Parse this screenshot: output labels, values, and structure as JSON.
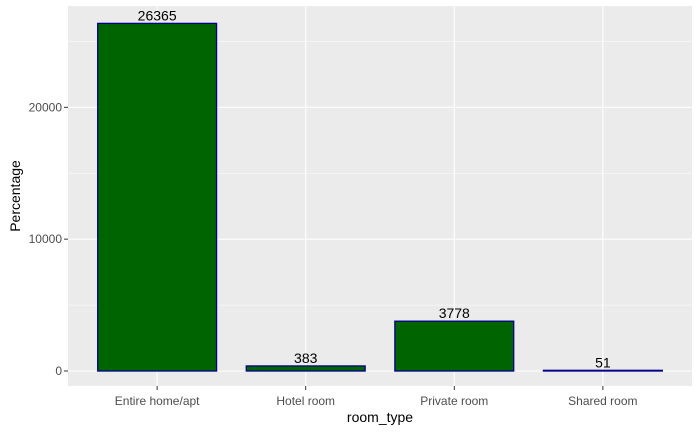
{
  "chart_data": {
    "type": "bar",
    "title": "",
    "xlabel": "room_type",
    "ylabel": "Percentage",
    "categories": [
      "Entire home/apt",
      "Hotel room",
      "Private room",
      "Shared room"
    ],
    "values": [
      26365,
      383,
      3778,
      51
    ],
    "data_labels": [
      "26365",
      "383",
      "3778",
      "51"
    ],
    "ylim": [
      0,
      27683
    ],
    "y_ticks": [
      0,
      10000,
      20000
    ],
    "y_tick_labels": [
      "0",
      "10000",
      "20000"
    ],
    "grid": true,
    "legend": "none",
    "colors": {
      "bar_fill": "#006400",
      "bar_outline": "#00008b",
      "panel_background": "#ebebeb",
      "grid_major": "#ffffff"
    }
  }
}
